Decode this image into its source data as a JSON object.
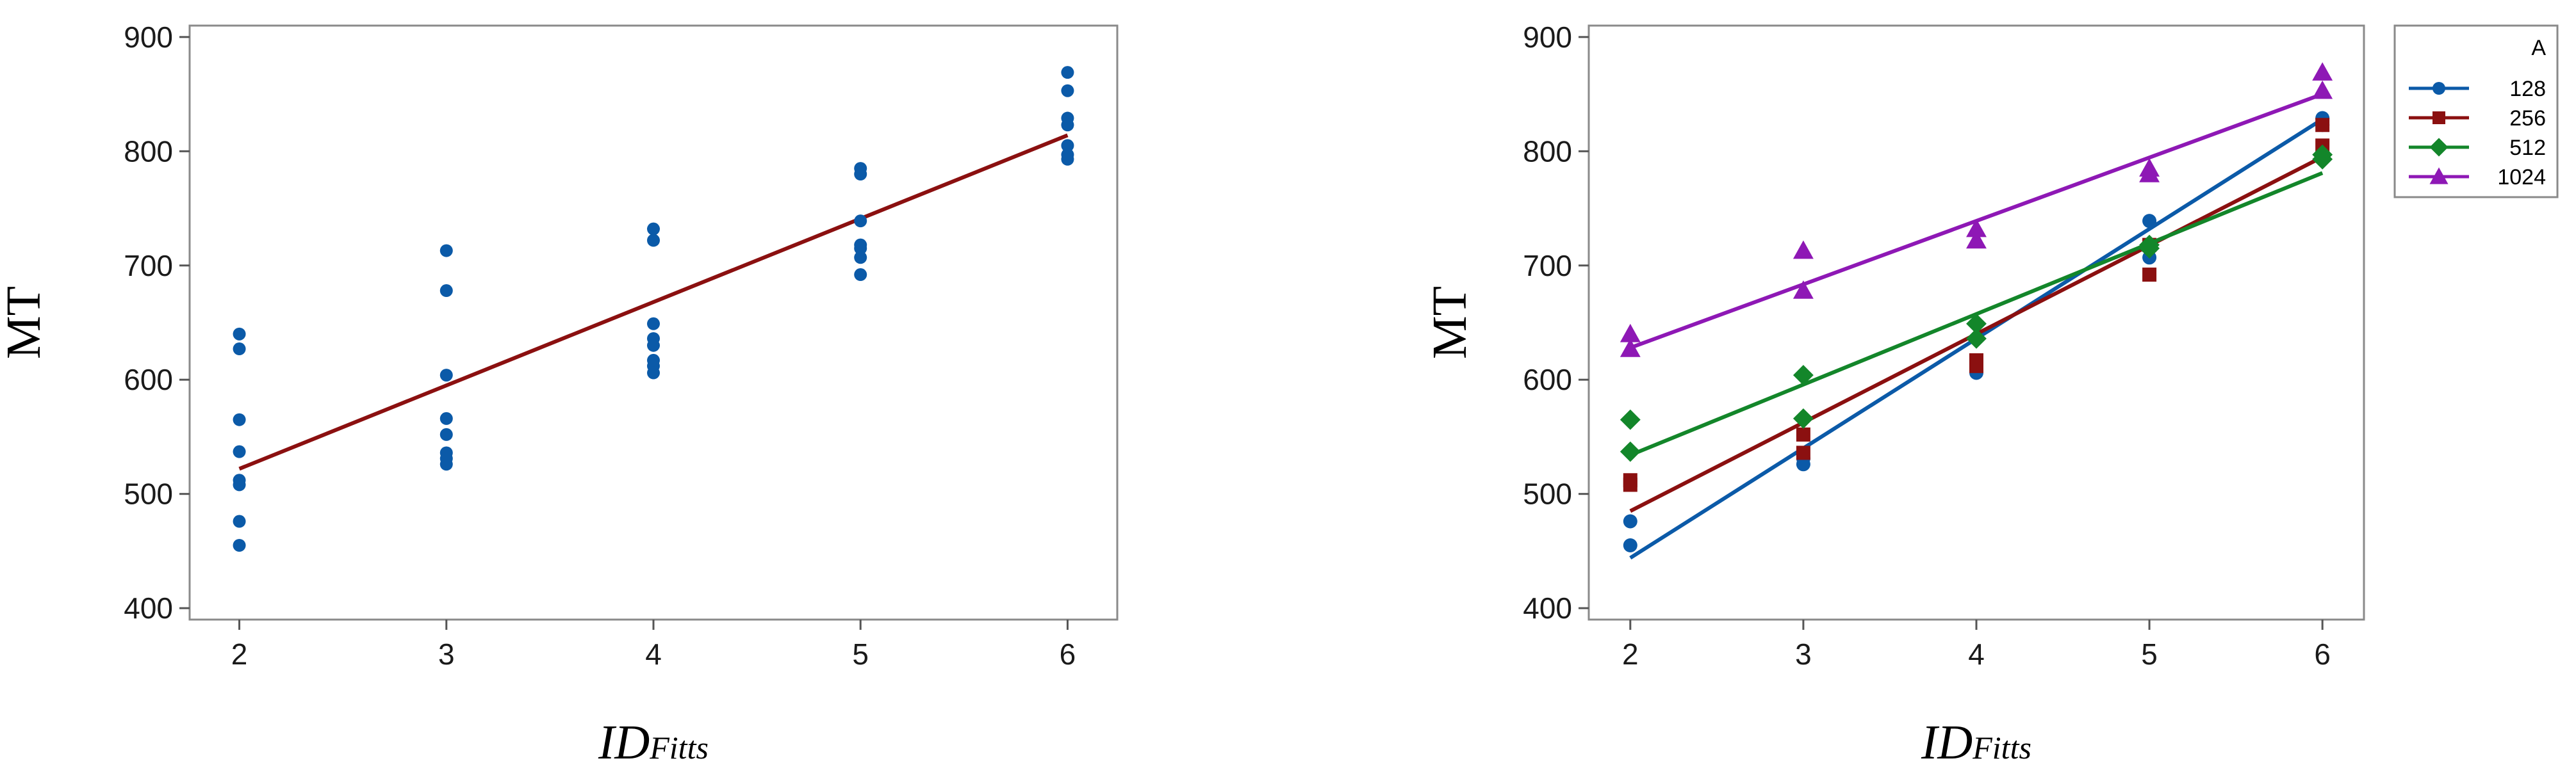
{
  "chart_data": [
    {
      "type": "scatter",
      "title": "",
      "xlabel": "ID",
      "xlabel_subscript": "Fitts",
      "ylabel": "MT",
      "xticks": [
        2,
        3,
        4,
        5,
        6
      ],
      "yticks": [
        400,
        500,
        600,
        700,
        800,
        900
      ],
      "xlim": [
        1.76,
        6.24
      ],
      "ylim": [
        390,
        910
      ],
      "grid": false,
      "series": [
        {
          "color": "#0b5aa8",
          "marker": "circle",
          "points": [
            [
              2,
              640
            ],
            [
              2,
              627
            ],
            [
              2,
              565
            ],
            [
              2,
              537
            ],
            [
              2,
              512
            ],
            [
              2,
              508
            ],
            [
              2,
              476
            ],
            [
              2,
              455
            ],
            [
              3,
              713
            ],
            [
              3,
              678
            ],
            [
              3,
              604
            ],
            [
              3,
              566
            ],
            [
              3,
              552
            ],
            [
              3,
              536
            ],
            [
              3,
              531
            ],
            [
              3,
              526
            ],
            [
              4,
              732
            ],
            [
              4,
              722
            ],
            [
              4,
              649
            ],
            [
              4,
              636
            ],
            [
              4,
              630
            ],
            [
              4,
              617
            ],
            [
              4,
              612
            ],
            [
              4,
              606
            ],
            [
              5,
              785
            ],
            [
              5,
              780
            ],
            [
              5,
              739
            ],
            [
              5,
              718
            ],
            [
              5,
              715
            ],
            [
              5,
              707
            ],
            [
              5,
              692
            ],
            [
              6,
              869
            ],
            [
              6,
              853
            ],
            [
              6,
              829
            ],
            [
              6,
              823
            ],
            [
              6,
              805
            ],
            [
              6,
              797
            ],
            [
              6,
              793
            ]
          ]
        }
      ],
      "fit_lines": [
        {
          "color": "#8b1010",
          "x": [
            2,
            6
          ],
          "y": [
            522,
            814
          ]
        }
      ]
    },
    {
      "type": "scatter",
      "title": "",
      "xlabel": "ID",
      "xlabel_subscript": "Fitts",
      "ylabel": "MT",
      "xticks": [
        2,
        3,
        4,
        5,
        6
      ],
      "yticks": [
        400,
        500,
        600,
        700,
        800,
        900
      ],
      "xlim": [
        1.76,
        6.24
      ],
      "ylim": [
        390,
        910
      ],
      "grid": false,
      "legend": {
        "title": "A",
        "placement": "outside-right"
      },
      "series": [
        {
          "name": "128",
          "color": "#0b5aa8",
          "marker": "circle",
          "points": [
            [
              2,
              476
            ],
            [
              2,
              455
            ],
            [
              3,
              531
            ],
            [
              3,
              526
            ],
            [
              4,
              606
            ],
            [
              4,
              636
            ],
            [
              5,
              739
            ],
            [
              5,
              707
            ],
            [
              6,
              829
            ],
            [
              6,
              823
            ]
          ],
          "fit": {
            "x": [
              2,
              6
            ],
            "y": [
              444,
              828
            ]
          }
        },
        {
          "name": "256",
          "color": "#8b1010",
          "marker": "square",
          "points": [
            [
              2,
              512
            ],
            [
              2,
              508
            ],
            [
              3,
              552
            ],
            [
              3,
              536
            ],
            [
              4,
              617
            ],
            [
              4,
              612
            ],
            [
              5,
              718
            ],
            [
              5,
              692
            ],
            [
              6,
              823
            ],
            [
              6,
              805
            ]
          ],
          "fit": {
            "x": [
              2,
              6
            ],
            "y": [
              485,
              795
            ]
          }
        },
        {
          "name": "512",
          "color": "#13862a",
          "marker": "diamond",
          "points": [
            [
              2,
              565
            ],
            [
              2,
              537
            ],
            [
              3,
              604
            ],
            [
              3,
              566
            ],
            [
              4,
              649
            ],
            [
              4,
              636
            ],
            [
              5,
              718
            ],
            [
              5,
              715
            ],
            [
              6,
              797
            ],
            [
              6,
              793
            ]
          ],
          "fit": {
            "x": [
              2,
              6
            ],
            "y": [
              534,
              781
            ]
          }
        },
        {
          "name": "1024",
          "color": "#8e18b5",
          "marker": "triangle",
          "points": [
            [
              2,
              640
            ],
            [
              2,
              627
            ],
            [
              3,
              713
            ],
            [
              3,
              678
            ],
            [
              4,
              732
            ],
            [
              4,
              722
            ],
            [
              5,
              785
            ],
            [
              5,
              780
            ],
            [
              6,
              869
            ],
            [
              6,
              853
            ]
          ],
          "fit": {
            "x": [
              2,
              6
            ],
            "y": [
              628,
              850
            ]
          }
        }
      ]
    }
  ]
}
